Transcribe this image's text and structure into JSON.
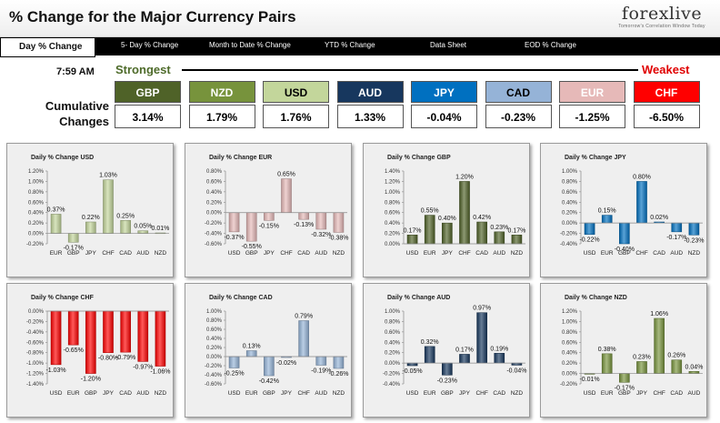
{
  "header": {
    "title": "% Change for the Major Currency Pairs",
    "logo": "forexlive",
    "logo_tagline": "Tomorrow's Correlation Window Today"
  },
  "nav": {
    "tabs": [
      "Day % Change",
      "5- Day % Change",
      "Month to Date % Change",
      "YTD % Change",
      "Data Sheet",
      "EOD % Change"
    ],
    "active": "Day % Change"
  },
  "timestamp": "7:59 AM",
  "strength": {
    "strongest_label": "Strongest",
    "weakest_label": "Weakest",
    "cumulative_label": "Cumulative Changes"
  },
  "currencies": [
    {
      "code": "GBP",
      "value": "3.14%",
      "color": "#4f6228",
      "text_color": "#ffffff"
    },
    {
      "code": "NZD",
      "value": "1.79%",
      "color": "#77933c",
      "text_color": "#ffffff"
    },
    {
      "code": "USD",
      "value": "1.76%",
      "color": "#c3d69b",
      "text_color": "#000000"
    },
    {
      "code": "AUD",
      "value": "1.33%",
      "color": "#17375e",
      "text_color": "#ffffff"
    },
    {
      "code": "JPY",
      "value": "-0.04%",
      "color": "#0070c0",
      "text_color": "#ffffff"
    },
    {
      "code": "CAD",
      "value": "-0.23%",
      "color": "#95b3d7",
      "text_color": "#000000"
    },
    {
      "code": "EUR",
      "value": "-1.25%",
      "color": "#e6b9b8",
      "text_color": "#ffffff"
    },
    {
      "code": "CHF",
      "value": "-6.50%",
      "color": "#ff0000",
      "text_color": "#ffffff"
    }
  ],
  "chart_data": [
    {
      "type": "bar",
      "title": "Daily % Change USD",
      "categories": [
        "EUR",
        "GBP",
        "JPY",
        "CHF",
        "CAD",
        "AUD",
        "NZD"
      ],
      "values": [
        0.37,
        -0.17,
        0.22,
        1.03,
        0.25,
        0.05,
        0.01
      ],
      "labels": [
        "0.37%",
        "-0.17%",
        "0.22%",
        "1.03%",
        "0.25%",
        "0.05%",
        "0.01%"
      ],
      "ylim": [
        -0.2,
        1.2
      ],
      "ticks": [
        -0.2,
        0,
        0.2,
        0.4,
        0.6,
        0.8,
        1.0,
        1.2
      ],
      "tick_labels": [
        "-0.20%",
        "0.00%",
        "0.20%",
        "0.40%",
        "0.60%",
        "0.80%",
        "1.00%",
        "1.20%"
      ],
      "color": "#c3d69b"
    },
    {
      "type": "bar",
      "title": "Daily % Change EUR",
      "categories": [
        "USD",
        "GBP",
        "JPY",
        "CHF",
        "CAD",
        "AUD",
        "NZD"
      ],
      "values": [
        -0.37,
        -0.55,
        -0.15,
        0.65,
        -0.13,
        -0.32,
        -0.38
      ],
      "labels": [
        "-0.37%",
        "-0.55%",
        "-0.15%",
        "0.65%",
        "-0.13%",
        "-0.32%",
        "-0.38%"
      ],
      "ylim": [
        -0.6,
        0.8
      ],
      "ticks": [
        -0.6,
        -0.4,
        -0.2,
        0,
        0.2,
        0.4,
        0.6,
        0.8
      ],
      "tick_labels": [
        "-0.60%",
        "-0.40%",
        "-0.20%",
        "0.00%",
        "0.20%",
        "0.40%",
        "0.60%",
        "0.80%"
      ],
      "color": "#e6b9b8"
    },
    {
      "type": "bar",
      "title": "Daily % Change GBP",
      "categories": [
        "USD",
        "EUR",
        "JPY",
        "CHF",
        "CAD",
        "AUD",
        "NZD"
      ],
      "values": [
        0.17,
        0.55,
        0.4,
        1.2,
        0.42,
        0.23,
        0.17
      ],
      "labels": [
        "0.17%",
        "0.55%",
        "0.40%",
        "1.20%",
        "0.42%",
        "0.23%",
        "0.17%"
      ],
      "ylim": [
        0,
        1.4
      ],
      "ticks": [
        0,
        0.2,
        0.4,
        0.6,
        0.8,
        1.0,
        1.2,
        1.4
      ],
      "tick_labels": [
        "0.00%",
        "0.20%",
        "0.40%",
        "0.60%",
        "0.80%",
        "1.00%",
        "1.20%",
        "1.40%"
      ],
      "color": "#4f6228"
    },
    {
      "type": "bar",
      "title": "Daily % Change JPY",
      "categories": [
        "USD",
        "EUR",
        "GBP",
        "CHF",
        "CAD",
        "AUD",
        "NZD"
      ],
      "values": [
        -0.22,
        0.15,
        -0.4,
        0.8,
        0.02,
        -0.17,
        -0.23
      ],
      "labels": [
        "-0.22%",
        "0.15%",
        "-0.40%",
        "0.80%",
        "0.02%",
        "-0.17%",
        "-0.23%"
      ],
      "ylim": [
        -0.4,
        1.0
      ],
      "ticks": [
        -0.4,
        -0.2,
        0,
        0.2,
        0.4,
        0.6,
        0.8,
        1.0
      ],
      "tick_labels": [
        "-0.40%",
        "-0.20%",
        "0.00%",
        "0.20%",
        "0.40%",
        "0.60%",
        "0.80%",
        "1.00%"
      ],
      "color": "#0070c0"
    },
    {
      "type": "bar",
      "title": "Daily % Change CHF",
      "categories": [
        "USD",
        "EUR",
        "GBP",
        "JPY",
        "CAD",
        "AUD",
        "NZD"
      ],
      "values": [
        -1.03,
        -0.65,
        -1.2,
        -0.8,
        -0.79,
        -0.97,
        -1.06
      ],
      "labels": [
        "-1.03%",
        "-0.65%",
        "-1.20%",
        "-0.80%",
        "-0.79%",
        "-0.97%",
        "-1.06%"
      ],
      "ylim": [
        -1.4,
        0
      ],
      "ticks": [
        -1.4,
        -1.2,
        -1.0,
        -0.8,
        -0.6,
        -0.4,
        -0.2,
        0
      ],
      "tick_labels": [
        "-1.40%",
        "-1.20%",
        "-1.00%",
        "-0.80%",
        "-0.60%",
        "-0.40%",
        "-0.20%",
        "0.00%"
      ],
      "color": "#ff0000"
    },
    {
      "type": "bar",
      "title": "Daily % Change CAD",
      "categories": [
        "USD",
        "EUR",
        "GBP",
        "JPY",
        "CHF",
        "AUD",
        "NZD"
      ],
      "values": [
        -0.25,
        0.13,
        -0.42,
        -0.02,
        0.79,
        -0.19,
        -0.26
      ],
      "labels": [
        "-0.25%",
        "0.13%",
        "-0.42%",
        "-0.02%",
        "0.79%",
        "-0.19%",
        "-0.26%"
      ],
      "ylim": [
        -0.6,
        1.0
      ],
      "ticks": [
        -0.6,
        -0.4,
        -0.2,
        0,
        0.2,
        0.4,
        0.6,
        0.8,
        1.0
      ],
      "tick_labels": [
        "-0.60%",
        "-0.40%",
        "-0.20%",
        "0.00%",
        "0.20%",
        "0.40%",
        "0.60%",
        "0.80%",
        "1.00%"
      ],
      "color": "#95b3d7"
    },
    {
      "type": "bar",
      "title": "Daily % Change AUD",
      "categories": [
        "USD",
        "EUR",
        "GBP",
        "JPY",
        "CHF",
        "CAD",
        "NZD"
      ],
      "values": [
        -0.05,
        0.32,
        -0.23,
        0.17,
        0.97,
        0.19,
        -0.04
      ],
      "labels": [
        "-0.05%",
        "0.32%",
        "-0.23%",
        "0.17%",
        "0.97%",
        "0.19%",
        "-0.04%"
      ],
      "ylim": [
        -0.4,
        1.0
      ],
      "ticks": [
        -0.4,
        -0.2,
        0,
        0.2,
        0.4,
        0.6,
        0.8,
        1.0
      ],
      "tick_labels": [
        "-0.40%",
        "-0.20%",
        "0.00%",
        "0.20%",
        "0.40%",
        "0.60%",
        "0.80%",
        "1.00%"
      ],
      "color": "#17375e"
    },
    {
      "type": "bar",
      "title": "Daily % Change NZD",
      "categories": [
        "USD",
        "EUR",
        "GBP",
        "JPY",
        "CHF",
        "CAD",
        "AUD"
      ],
      "values": [
        -0.01,
        0.38,
        -0.17,
        0.23,
        1.06,
        0.26,
        0.04
      ],
      "labels": [
        "-0.01%",
        "0.38%",
        "-0.17%",
        "0.23%",
        "1.06%",
        "0.26%",
        "0.04%"
      ],
      "ylim": [
        -0.2,
        1.2
      ],
      "ticks": [
        -0.2,
        0,
        0.2,
        0.4,
        0.6,
        0.8,
        1.0,
        1.2
      ],
      "tick_labels": [
        "-0.20%",
        "0.00%",
        "0.20%",
        "0.40%",
        "0.60%",
        "0.80%",
        "1.00%",
        "1.20%"
      ],
      "color": "#77933c"
    }
  ]
}
